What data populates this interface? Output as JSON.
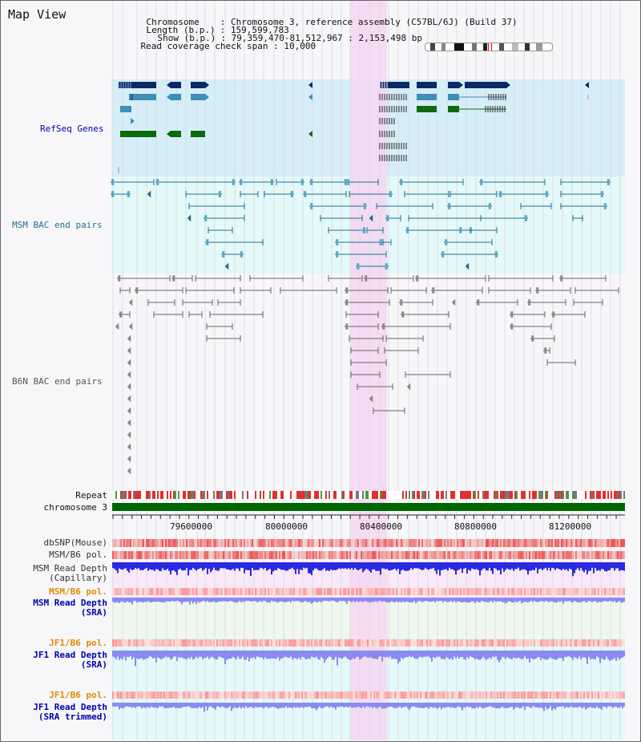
{
  "page": {
    "title": "Map View"
  },
  "header": {
    "chromosome_key": "Chromosome",
    "chromosome_value": "Chromosome 3, reference assembly (C57BL/6J) (Build 37)",
    "length_key": "Length (b.p.)",
    "length_value": "159,599,783",
    "show_key": "Show (b.p.)",
    "show_value": "79,359,470-81,512,967 : 2,153,498 bp",
    "coverage_key": "Read coverage check span",
    "coverage_value": "10,000",
    "sep": ":"
  },
  "tracks": {
    "refseq": "RefSeq Genes",
    "msm_bac": "MSM BAC end pairs",
    "b6n_bac": "B6N BAC end pairs",
    "repeat": "Repeat",
    "chromosome": "chromosome 3",
    "dbsnp": "dbSNP(Mouse)",
    "msm_b6_pol": "MSM/B6 pol.",
    "msm_depth_cap_1": "MSM Read Depth",
    "msm_depth_cap_2": "(Capillary)",
    "msm_b6_pol_2": "MSM/B6 pol.",
    "msm_depth_sra_1": "MSM Read Depth",
    "msm_depth_sra_2": "(SRA)",
    "jf1_b6_pol": "JF1/B6 pol.",
    "jf1_depth_sra_1": "JF1 Read Depth",
    "jf1_depth_sra_2": "(SRA)",
    "jf1_b6_pol_2": "JF1/B6 pol.",
    "jf1_depth_trim_1": "JF1 Read Depth",
    "jf1_depth_trim_2": "(SRA trimmed)"
  },
  "axis": {
    "ticks": [
      "79600000",
      "80000000",
      "80400000",
      "80800000",
      "81200000"
    ]
  },
  "colors": {
    "refseq_bg": "#d6eef8",
    "msm_bg": "#e4f9f9",
    "b6n_bg": "#f7f7fa",
    "highlight": "#f7d6f3",
    "gene_navy": "#0a2a66",
    "gene_teal": "#3d8fb5",
    "gene_green": "#0c6b0c",
    "msm_line": "#1f6f8f",
    "b6n_line": "#666666",
    "repeat_red": "#e03030",
    "chromosome_green": "#006600",
    "depth_blue": "#2a2ae0",
    "depth_light": "#8a8af0",
    "label_blue": "#0000aa",
    "label_orange": "#e08a00"
  }
}
